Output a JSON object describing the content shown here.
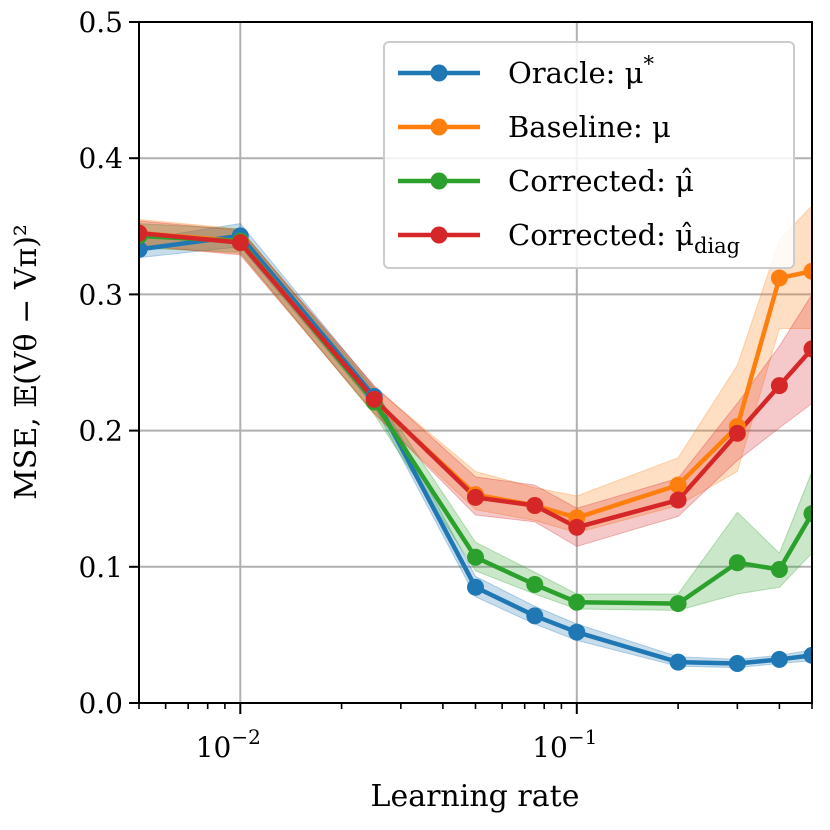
{
  "chart_data": {
    "type": "line",
    "xscale": "log",
    "xlim": [
      0.005,
      0.5
    ],
    "ylim": [
      0.0,
      0.5
    ],
    "grid": true,
    "legend_position": "top-right",
    "xlabel": "Learning rate",
    "ylabel": "MSE, 𝔼(Vθ − Vπ)²",
    "x_major_ticks": [
      {
        "value": 0.01,
        "base": "10",
        "exp": "−2"
      },
      {
        "value": 0.1,
        "base": "10",
        "exp": "−1"
      }
    ],
    "y_ticks": [
      {
        "value": 0.0,
        "label": "0.0"
      },
      {
        "value": 0.1,
        "label": "0.1"
      },
      {
        "value": 0.2,
        "label": "0.2"
      },
      {
        "value": 0.3,
        "label": "0.3"
      },
      {
        "value": 0.4,
        "label": "0.4"
      },
      {
        "value": 0.5,
        "label": "0.5"
      }
    ],
    "x": [
      0.005,
      0.01,
      0.025,
      0.05,
      0.075,
      0.1,
      0.2,
      0.3,
      0.4,
      0.5
    ],
    "series": [
      {
        "name": "Oracle: μ*",
        "label_main": "Oracle: μ",
        "label_sup": "*",
        "label_sub": "",
        "color": "#1f77b4",
        "values": [
          0.333,
          0.343,
          0.225,
          0.085,
          0.064,
          0.052,
          0.03,
          0.029,
          0.032,
          0.035
        ],
        "lower": [
          0.327,
          0.335,
          0.218,
          0.078,
          0.058,
          0.046,
          0.027,
          0.026,
          0.029,
          0.031
        ],
        "upper": [
          0.34,
          0.352,
          0.232,
          0.093,
          0.071,
          0.058,
          0.034,
          0.032,
          0.035,
          0.039
        ]
      },
      {
        "name": "Baseline: μ",
        "label_main": "Baseline: μ",
        "label_sup": "",
        "label_sub": "",
        "color": "#ff7f0e",
        "values": [
          0.345,
          0.339,
          0.222,
          0.153,
          0.145,
          0.136,
          0.16,
          0.203,
          0.312,
          0.317
        ],
        "lower": [
          0.335,
          0.33,
          0.212,
          0.142,
          0.134,
          0.125,
          0.145,
          0.17,
          0.275,
          0.275
        ],
        "upper": [
          0.355,
          0.348,
          0.232,
          0.17,
          0.158,
          0.152,
          0.18,
          0.248,
          0.34,
          0.365
        ]
      },
      {
        "name": "Corrected: μ̂",
        "label_main": "Corrected: μ̂",
        "label_sup": "",
        "label_sub": "",
        "color": "#2ca02c",
        "values": [
          0.343,
          0.339,
          0.221,
          0.107,
          0.087,
          0.074,
          0.073,
          0.103,
          0.098,
          0.139
        ],
        "lower": [
          0.334,
          0.331,
          0.212,
          0.097,
          0.08,
          0.069,
          0.068,
          0.08,
          0.085,
          0.11
        ],
        "upper": [
          0.352,
          0.348,
          0.23,
          0.118,
          0.096,
          0.08,
          0.08,
          0.14,
          0.11,
          0.17
        ]
      },
      {
        "name": "Corrected: μ̂diag",
        "label_main": "Corrected: μ̂",
        "label_sup": "",
        "label_sub": "diag",
        "color": "#d62728",
        "values": [
          0.345,
          0.338,
          0.223,
          0.151,
          0.145,
          0.129,
          0.149,
          0.198,
          0.233,
          0.26
        ],
        "lower": [
          0.336,
          0.329,
          0.213,
          0.138,
          0.133,
          0.115,
          0.137,
          0.178,
          0.202,
          0.22
        ],
        "upper": [
          0.354,
          0.347,
          0.233,
          0.166,
          0.16,
          0.143,
          0.165,
          0.22,
          0.262,
          0.3
        ]
      }
    ]
  }
}
